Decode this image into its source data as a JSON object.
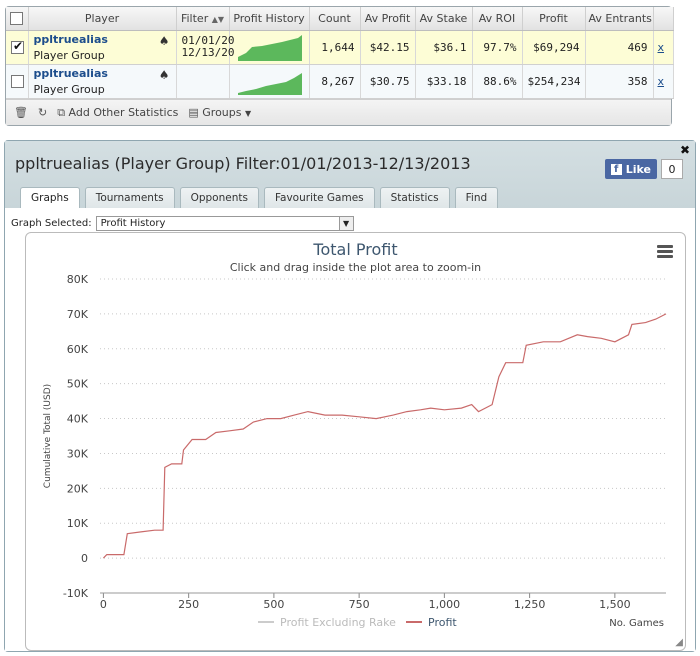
{
  "table": {
    "headers": [
      "",
      "Player",
      "Filter",
      "Profit History",
      "Count",
      "Av Profit",
      "Av Stake",
      "Av ROI",
      "Profit",
      "Av Entrants",
      ""
    ],
    "filter_sort_icon": "sort-arrows-icon",
    "rows": [
      {
        "checked": true,
        "name": "ppltruealias",
        "group": "Player Group",
        "filter_line1": "01/01/20",
        "filter_line2": "12/13/20",
        "count": "1,644",
        "av_profit": "$42.15",
        "av_stake": "$36.1",
        "av_roi": "97.7%",
        "profit": "$69,294",
        "av_entrants": "469",
        "remove": "x"
      },
      {
        "checked": false,
        "name": "ppltruealias",
        "group": "Player Group",
        "filter_line1": "",
        "filter_line2": "",
        "count": "8,267",
        "av_profit": "$30.75",
        "av_stake": "$33.18",
        "av_roi": "88.6%",
        "profit": "$254,234",
        "av_entrants": "358",
        "remove": "x"
      }
    ],
    "sparkline_color": "#5cb85c"
  },
  "toolbar": {
    "add_stats_label": "Add Other Statistics",
    "groups_label": "Groups"
  },
  "panel": {
    "title": "ppltruealias (Player Group) Filter:01/01/2013-12/13/2013",
    "fb_like_label": "Like",
    "fb_count": "0",
    "tabs": [
      "Graphs",
      "Tournaments",
      "Opponents",
      "Favourite Games",
      "Statistics",
      "Find"
    ],
    "active_tab": "Graphs",
    "graph_selected_label": "Graph Selected:",
    "graph_selected_value": "Profit History"
  },
  "chart_data": {
    "type": "line",
    "title": "Total Profit",
    "subtitle": "Click and drag inside the plot area to zoom-in",
    "xlabel": "No. Games",
    "ylabel": "Cumulative Total (USD)",
    "xlim": [
      -10,
      1650
    ],
    "ylim": [
      -10000,
      80000
    ],
    "x_ticks": [
      0,
      250,
      500,
      750,
      1000,
      1250,
      1500
    ],
    "x_tick_labels": [
      "0",
      "250",
      "500",
      "750",
      "1,000",
      "1,250",
      "1,500"
    ],
    "y_ticks": [
      -10000,
      0,
      10000,
      20000,
      30000,
      40000,
      50000,
      60000,
      70000,
      80000
    ],
    "y_tick_labels": [
      "-10K",
      "0",
      "10K",
      "20K",
      "30K",
      "40K",
      "50K",
      "60K",
      "70K",
      "80K"
    ],
    "grid": true,
    "legend": [
      "Profit Excluding Rake",
      "Profit"
    ],
    "legend_placement": "bottom-center",
    "series": [
      {
        "name": "Profit",
        "color": "#c96a6a",
        "points": [
          [
            0,
            0
          ],
          [
            10,
            1000
          ],
          [
            60,
            1000
          ],
          [
            70,
            7000
          ],
          [
            110,
            7500
          ],
          [
            150,
            8000
          ],
          [
            175,
            8000
          ],
          [
            180,
            26000
          ],
          [
            200,
            27000
          ],
          [
            230,
            27000
          ],
          [
            235,
            31000
          ],
          [
            260,
            34000
          ],
          [
            300,
            34000
          ],
          [
            330,
            36000
          ],
          [
            370,
            36500
          ],
          [
            410,
            37000
          ],
          [
            440,
            39000
          ],
          [
            480,
            40000
          ],
          [
            520,
            40000
          ],
          [
            560,
            41000
          ],
          [
            600,
            42000
          ],
          [
            650,
            41000
          ],
          [
            700,
            41000
          ],
          [
            750,
            40500
          ],
          [
            800,
            40000
          ],
          [
            850,
            41000
          ],
          [
            890,
            42000
          ],
          [
            930,
            42500
          ],
          [
            960,
            43000
          ],
          [
            1000,
            42500
          ],
          [
            1050,
            43000
          ],
          [
            1080,
            44000
          ],
          [
            1100,
            42000
          ],
          [
            1140,
            44000
          ],
          [
            1160,
            52000
          ],
          [
            1180,
            56000
          ],
          [
            1210,
            56000
          ],
          [
            1230,
            56000
          ],
          [
            1240,
            61000
          ],
          [
            1290,
            62000
          ],
          [
            1340,
            62000
          ],
          [
            1390,
            64000
          ],
          [
            1420,
            63500
          ],
          [
            1460,
            63000
          ],
          [
            1500,
            62000
          ],
          [
            1540,
            64000
          ],
          [
            1550,
            67000
          ],
          [
            1590,
            67500
          ],
          [
            1620,
            68500
          ],
          [
            1650,
            70000
          ]
        ]
      },
      {
        "name": "Profit Excluding Rake",
        "color": "#cccccc",
        "points": []
      }
    ]
  }
}
